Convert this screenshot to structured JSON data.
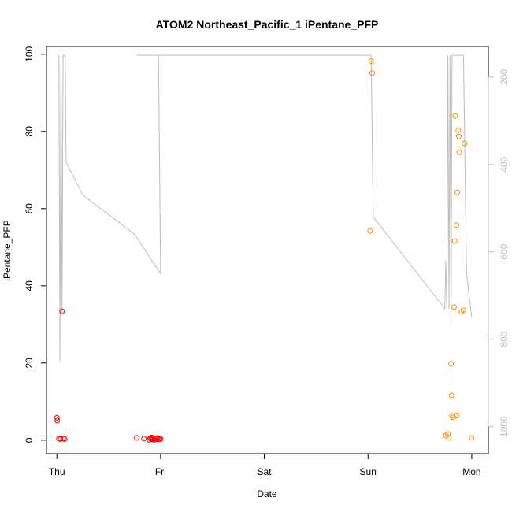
{
  "chart_data": {
    "type": "scatter",
    "title": "ATOM2 Northeast_Pacific_1 iPentane_PFP",
    "xlabel": "Date",
    "ylabel": "iPentane_PFP",
    "x_ticks": [
      "Thu",
      "Fri",
      "Sat",
      "Sun",
      "Mon"
    ],
    "xlim": [
      -0.1,
      4.16
    ],
    "ylim": [
      -3.5,
      102
    ],
    "y_ticks": [
      0,
      20,
      40,
      60,
      80,
      100
    ],
    "y2_ticks": [
      200,
      400,
      600,
      800,
      1000
    ],
    "y2lim": [
      1062,
      130
    ],
    "colors": {
      "series_1": "#ff0000",
      "series_2": "#ff8c00",
      "altitude": "#bebebe"
    },
    "series": [
      {
        "x": [
          0.0,
          0.005,
          0.02,
          0.035,
          0.05,
          0.06,
          0.075
        ],
        "y": [
          5.8,
          5.1,
          0.4,
          0.3,
          33.4,
          0.4,
          0.3
        ]
      },
      {
        "x": [
          0.77,
          0.84,
          0.89,
          0.9,
          0.91,
          0.915,
          0.925,
          0.93,
          0.94,
          0.95,
          0.96,
          0.97,
          0.98,
          0.99,
          1.0
        ],
        "y": [
          0.6,
          0.4,
          0.1,
          0.5,
          0.3,
          0.7,
          0.2,
          0.4,
          0.1,
          0.5,
          0.3,
          0.6,
          0.2,
          0.4,
          0.3
        ]
      },
      {
        "x": [
          3.02,
          3.03,
          3.04,
          3.75,
          3.77,
          3.78,
          3.8,
          3.805,
          3.81,
          3.82,
          3.83,
          3.835,
          3.84,
          3.85,
          3.855,
          3.86,
          3.87,
          3.875,
          3.88,
          3.9,
          3.92,
          3.93,
          4.0
        ],
        "y": [
          54.2,
          98.2,
          95.1,
          1.2,
          1.6,
          0.6,
          19.8,
          11.6,
          6.3,
          5.9,
          34.5,
          51.6,
          84.0,
          55.7,
          6.4,
          64.2,
          80.3,
          78.7,
          74.6,
          33.3,
          33.7,
          76.9,
          0.6
        ]
      }
    ],
    "altitude_line": {
      "x": [
        0.02,
        0.03,
        0.04,
        0.05,
        0.06,
        0.07,
        0.08,
        0.09,
        0.25,
        0.75,
        1.0,
        0.98,
        0.96,
        0.94,
        0.92,
        0.9,
        0.88,
        0.86,
        0.77,
        0.82,
        0.83,
        0.86,
        0.9,
        0.91,
        0.92,
        0.93,
        0.94,
        0.95,
        0.96,
        0.97,
        0.98,
        1.0,
        3.02,
        3.03,
        3.05,
        3.74,
        3.75,
        3.76,
        3.77,
        3.78,
        3.79,
        3.8,
        3.81,
        3.82,
        3.83,
        3.84,
        3.85,
        3.86,
        3.87,
        3.88,
        3.89,
        3.9,
        3.91,
        3.92,
        3.95,
        4.0
      ],
      "y": [
        150,
        850,
        150,
        740,
        150,
        150,
        155,
        395,
        470,
        560,
        650,
        150,
        150,
        150,
        150,
        150,
        150,
        150,
        150,
        150,
        150,
        150,
        150,
        150,
        150,
        150,
        150,
        150,
        150,
        150,
        150,
        150,
        150,
        150,
        520,
        730,
        620,
        730,
        150,
        730,
        150,
        760,
        150,
        150,
        150,
        150,
        150,
        150,
        150,
        150,
        150,
        150,
        150,
        150,
        650,
        750
      ]
    }
  }
}
